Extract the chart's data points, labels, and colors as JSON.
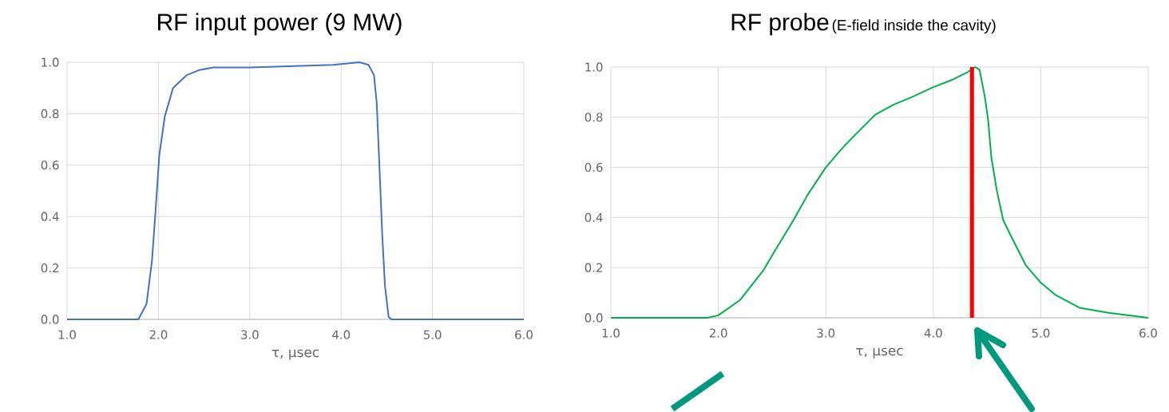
{
  "chart_data": [
    {
      "type": "line",
      "title": "RF input power (9 MW)",
      "xlabel": "τ, µsec",
      "color": "#4472c4",
      "grid": true,
      "x": [
        1.0,
        1.78,
        1.87,
        1.93,
        1.97,
        2.01,
        2.07,
        2.16,
        2.31,
        2.45,
        2.6,
        3.0,
        3.91,
        4.2,
        4.3,
        4.36,
        4.39,
        4.42,
        4.45,
        4.48,
        4.52,
        4.55,
        6.0
      ],
      "values": [
        0,
        0,
        0.06,
        0.23,
        0.43,
        0.64,
        0.79,
        0.9,
        0.95,
        0.97,
        0.98,
        0.98,
        0.99,
        1.0,
        0.99,
        0.95,
        0.84,
        0.59,
        0.33,
        0.13,
        0.01,
        0,
        0
      ],
      "xlim": [
        1,
        6
      ],
      "ylim": [
        0,
        1
      ],
      "xticks": [
        {
          "value": 1,
          "label": "1.0"
        },
        {
          "value": 2,
          "label": "2.0"
        },
        {
          "value": 3,
          "label": "3.0"
        },
        {
          "value": 4,
          "label": "4.0"
        },
        {
          "value": 5,
          "label": "5.0"
        },
        {
          "value": 6,
          "label": "6.0"
        }
      ],
      "yticks": [
        {
          "value": 0,
          "label": "0.0"
        },
        {
          "value": 0.2,
          "label": "0.2"
        },
        {
          "value": 0.4,
          "label": "0.4"
        },
        {
          "value": 0.6,
          "label": "0.6"
        },
        {
          "value": 0.8,
          "label": "0.8"
        },
        {
          "value": 1,
          "label": "1.0"
        }
      ]
    },
    {
      "type": "line",
      "title": "RF probe",
      "subtitle": "(E-field inside the cavity)",
      "xlabel": "τ, µsec",
      "color": "#00b050",
      "grid": true,
      "x": [
        1.0,
        1.9,
        2.0,
        2.2,
        2.42,
        2.53,
        2.7,
        2.83,
        3.0,
        3.14,
        3.25,
        3.46,
        3.63,
        3.8,
        4.0,
        4.18,
        4.32,
        4.39,
        4.43,
        4.48,
        4.51,
        4.54,
        4.59,
        4.65,
        4.73,
        4.86,
        5.0,
        5.14,
        5.36,
        5.63,
        6.0
      ],
      "values": [
        0,
        0,
        0.01,
        0.07,
        0.19,
        0.27,
        0.39,
        0.49,
        0.6,
        0.67,
        0.72,
        0.81,
        0.85,
        0.88,
        0.92,
        0.95,
        0.98,
        1.0,
        0.99,
        0.88,
        0.79,
        0.64,
        0.51,
        0.39,
        0.32,
        0.21,
        0.14,
        0.09,
        0.04,
        0.02,
        0.0
      ],
      "xlim": [
        1,
        6
      ],
      "ylim": [
        0,
        1
      ],
      "xticks": [
        {
          "value": 1,
          "label": "1.0"
        },
        {
          "value": 2,
          "label": "2.0"
        },
        {
          "value": 3,
          "label": "3.0"
        },
        {
          "value": 4,
          "label": "4.0"
        },
        {
          "value": 5,
          "label": "5.0"
        },
        {
          "value": 6,
          "label": "6.0"
        }
      ],
      "yticks": [
        {
          "value": 0,
          "label": "0.0"
        },
        {
          "value": 0.2,
          "label": "0.2"
        },
        {
          "value": 0.4,
          "label": "0.4"
        },
        {
          "value": 0.6,
          "label": "0.6"
        },
        {
          "value": 0.8,
          "label": "0.8"
        },
        {
          "value": 1,
          "label": "1.0"
        }
      ],
      "ref_lines": [
        {
          "axis": "x",
          "value": 4.36,
          "color": "#ff0000"
        }
      ]
    }
  ]
}
